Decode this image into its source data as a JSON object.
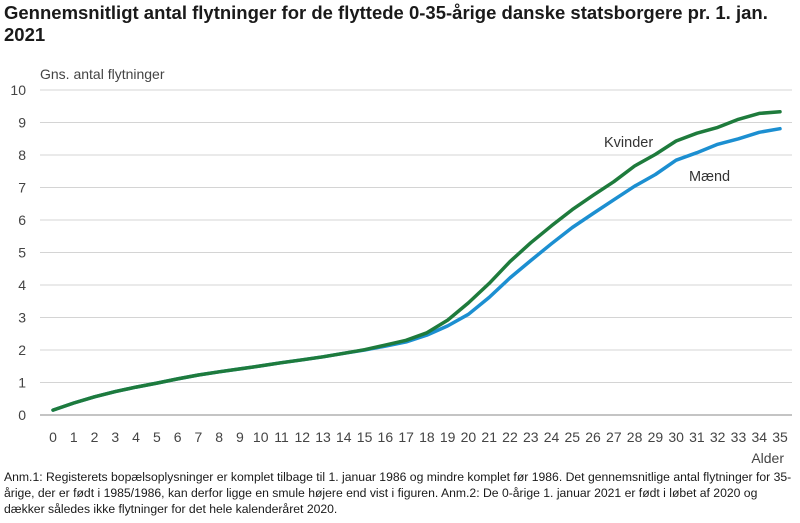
{
  "title": "Gennemsnitligt antal flytninger for de flyttede 0-35-årige danske statsborgere pr. 1. jan. 2021",
  "chart_data": {
    "type": "line",
    "title": "Gennemsnitligt antal flytninger for de flyttede 0-35-årige danske statsborgere pr. 1. jan. 2021",
    "ylabel": "Gns. antal flytninger",
    "xlabel": "Alder",
    "ylim": [
      0,
      10
    ],
    "yticks": [
      "0",
      "1",
      "2",
      "3",
      "4",
      "5",
      "6",
      "7",
      "8",
      "9",
      "10"
    ],
    "x": [
      "0",
      "1",
      "2",
      "3",
      "4",
      "5",
      "6",
      "7",
      "8",
      "9",
      "10",
      "11",
      "12",
      "13",
      "14",
      "15",
      "16",
      "17",
      "18",
      "19",
      "20",
      "21",
      "22",
      "23",
      "24",
      "25",
      "26",
      "27",
      "28",
      "29",
      "30",
      "31",
      "32",
      "33",
      "34",
      "35"
    ],
    "grid": "horizontal",
    "series": [
      {
        "name": "Kvinder",
        "color": "#1e7b3c",
        "values": [
          0.15,
          0.37,
          0.56,
          0.72,
          0.86,
          0.98,
          1.11,
          1.23,
          1.33,
          1.42,
          1.51,
          1.61,
          1.7,
          1.79,
          1.9,
          2.01,
          2.15,
          2.3,
          2.53,
          2.92,
          3.45,
          4.05,
          4.72,
          5.3,
          5.82,
          6.32,
          6.76,
          7.18,
          7.66,
          8.02,
          8.43,
          8.67,
          8.85,
          9.1,
          9.28,
          9.33
        ]
      },
      {
        "name": "Mænd",
        "color": "#1c8fd1",
        "values": [
          0.15,
          0.37,
          0.56,
          0.72,
          0.86,
          0.98,
          1.11,
          1.23,
          1.33,
          1.42,
          1.51,
          1.61,
          1.7,
          1.79,
          1.9,
          2.0,
          2.12,
          2.25,
          2.46,
          2.74,
          3.1,
          3.62,
          4.22,
          4.75,
          5.27,
          5.77,
          6.2,
          6.62,
          7.04,
          7.4,
          7.84,
          8.07,
          8.33,
          8.5,
          8.7,
          8.81
        ]
      }
    ]
  },
  "note": {
    "anm1": "Anm.1: Registerets bopælsoplysninger er komplet tilbage til 1. januar 1986 og mindre komplet før 1986. Det gennemsnitlige antal flytninger for 35-årige, der er født i 1985/1986, kan derfor ligge en smule højere end vist i figuren.",
    "anm2": "Anm.2: De 0-årige 1. januar 2021 er født i løbet af 2020 og dækker således ikke flytninger for det hele kalenderåret 2020."
  }
}
